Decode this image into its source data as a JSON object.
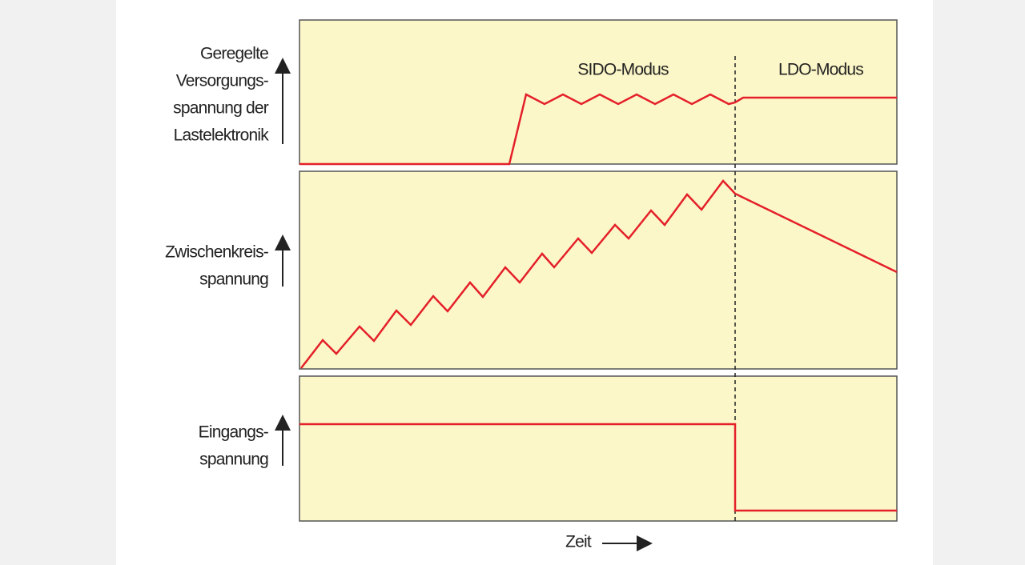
{
  "panels": [
    {
      "label_lines": [
        "Geregelte",
        "Versorgungs-",
        "spannung der",
        "Lastelektronik"
      ]
    },
    {
      "label_lines": [
        "Zwischenkreis-",
        "spannung"
      ]
    },
    {
      "label_lines": [
        "Eingangs-",
        "spannung"
      ]
    }
  ],
  "modes": [
    "SIDO-Modus",
    "LDO-Modus"
  ],
  "x_label": "Zeit"
}
